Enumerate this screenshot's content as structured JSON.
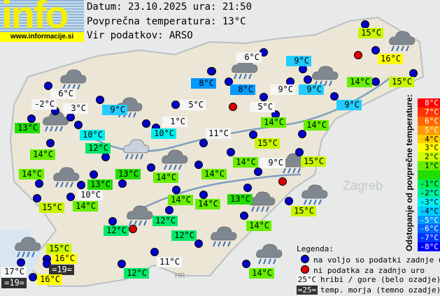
{
  "logo": {
    "text": "info",
    "url": "www.informacije.si"
  },
  "header": {
    "date": "Datum: 23.10.2025 ura: 21:50",
    "avg": "Povprečna temperatura: 13°C",
    "source": "Vir podatkov: ARSO"
  },
  "colors": {
    "white": "#f6f6f6",
    "dark": "#303030",
    "c8": "#0099ff",
    "c9": "#22ccff",
    "c10": "#00eeee",
    "c11": "#00ee99",
    "c12": "#00e86a",
    "c13": "#22dd00",
    "c14": "#66ee00",
    "c15": "#c8f500",
    "c16": "#ffff00",
    "station": "#0000cc",
    "nodata": "#dd0000"
  },
  "stations": [
    {
      "t": "15°C",
      "c": "c15"
    },
    {
      "t": "16°C",
      "c": "c16"
    },
    {
      "t": "15°C",
      "c": "c15"
    },
    {
      "t": "14°C",
      "c": "c14"
    },
    {
      "t": "9°C",
      "c": "c9"
    },
    {
      "t": "6°C",
      "c": "white"
    },
    {
      "t": "8°C",
      "c": "c8"
    },
    {
      "t": "9°C",
      "c": "white"
    },
    {
      "t": "9°C",
      "c": "c9"
    },
    {
      "t": "9°C",
      "c": "c9"
    },
    {
      "t": "8°C",
      "c": "c8"
    },
    {
      "t": "5°C",
      "c": "white"
    },
    {
      "t": "5°C",
      "c": "white"
    },
    {
      "t": "14°C",
      "c": "c14"
    },
    {
      "t": "14°C",
      "c": "c14"
    },
    {
      "t": "1°C",
      "c": "white"
    },
    {
      "t": "10°C",
      "c": "c10"
    },
    {
      "t": "11°C",
      "c": "white"
    },
    {
      "t": "15°C",
      "c": "c15"
    },
    {
      "t": "14°C",
      "c": "c14"
    },
    {
      "t": "9°C",
      "c": "white"
    },
    {
      "t": "15°C",
      "c": "c15"
    },
    {
      "t": "6°C",
      "c": "white"
    },
    {
      "t": "-2°C",
      "c": "white"
    },
    {
      "t": "3°C",
      "c": "white"
    },
    {
      "t": "9°C",
      "c": "c9"
    },
    {
      "t": "13°C",
      "c": "c13"
    },
    {
      "t": "10°C",
      "c": "c10"
    },
    {
      "t": "12°C",
      "c": "c12"
    },
    {
      "t": "14°C",
      "c": "c14"
    },
    {
      "t": "14°C",
      "c": "c14"
    },
    {
      "t": "13°C",
      "c": "c13"
    },
    {
      "t": "13°C",
      "c": "c13"
    },
    {
      "t": "14°C",
      "c": "c14"
    },
    {
      "t": "14°C",
      "c": "c14"
    },
    {
      "t": "10°C",
      "c": "white"
    },
    {
      "t": "14°C",
      "c": "c14"
    },
    {
      "t": "15°C",
      "c": "c15"
    },
    {
      "t": "14°C",
      "c": "c14"
    },
    {
      "t": "14°C",
      "c": "c14"
    },
    {
      "t": "13°C",
      "c": "c13"
    },
    {
      "t": "12°C",
      "c": "c12"
    },
    {
      "t": "12°C",
      "c": "c12"
    },
    {
      "t": "14°C",
      "c": "c14"
    },
    {
      "t": "15°C",
      "c": "c15"
    },
    {
      "t": "12°C",
      "c": "c12"
    },
    {
      "t": "15°C",
      "c": "c15"
    },
    {
      "t": "16°C",
      "c": "c16"
    },
    {
      "t": "=19=",
      "c": "dark"
    },
    {
      "t": "17°C",
      "c": "white"
    },
    {
      "t": "=19=",
      "c": "dark"
    },
    {
      "t": "16°C",
      "c": "c16"
    },
    {
      "t": "11°C",
      "c": "white"
    },
    {
      "t": "12°C",
      "c": "c12"
    },
    {
      "t": "14°C",
      "c": "c14"
    }
  ],
  "scale": {
    "title": "Odstopanje od povprečne temperature:",
    "rows": [
      {
        "t": "8°C",
        "c": "#ff0000"
      },
      {
        "t": "7°C",
        "c": "#ff3300"
      },
      {
        "t": "6°C",
        "c": "#ff6600"
      },
      {
        "t": "5°C",
        "c": "#ff9900"
      },
      {
        "t": "4°C",
        "c": "#ffcc00"
      },
      {
        "t": "3°C",
        "c": "#ffff00"
      },
      {
        "t": "2°C",
        "c": "#ccff00"
      },
      {
        "t": "1°C",
        "c": "#66ee00"
      },
      {
        "t": "",
        "c": "#22dd00"
      },
      {
        "t": "-1°C",
        "c": "#00ee55"
      },
      {
        "t": "-2°C",
        "c": "#00ee99"
      },
      {
        "t": "-3°C",
        "c": "#00eeee"
      },
      {
        "t": "-4°C",
        "c": "#00ccff"
      },
      {
        "t": "-5°C",
        "c": "#0099ff"
      },
      {
        "t": "-6°C",
        "c": "#0066ff"
      },
      {
        "t": "-7°C",
        "c": "#0033ff"
      },
      {
        "t": "-8°C",
        "c": "#0000ff"
      }
    ]
  },
  "legend": {
    "title": "Legenda:",
    "available": "na voljo so podatki zadnje ure",
    "nodata": "ni podatka za zadnjo uro",
    "mountain_sample": "25°C",
    "mountain": "hribi / gore (belo ozadje)",
    "sea_sample": "=25=",
    "sea": "temp. morja (temno ozadje)"
  },
  "map_labels": {
    "zagreb": "Zagreb",
    "croatia": "HR"
  },
  "weather_icons": [
    "heavy-rain",
    "rain",
    "sleet",
    "light-rain",
    "rain",
    "heavy-rain",
    "rain",
    "rain",
    "heavy-rain",
    "rain",
    "heavy-rain",
    "rain",
    "rain",
    "heavy-rain",
    "rain",
    "rain"
  ]
}
